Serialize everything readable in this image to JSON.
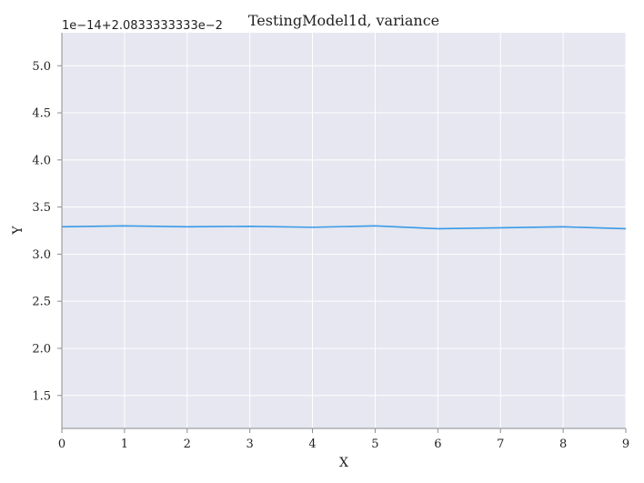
{
  "chart_data": {
    "type": "line",
    "title": "TestingModel1d, variance",
    "xlabel": "X",
    "ylabel": "Y",
    "offset_text": "1e−14+2.0833333333e−2",
    "x": [
      0,
      1,
      2,
      3,
      4,
      5,
      6,
      7,
      8,
      9
    ],
    "series": [
      {
        "values": [
          3.29,
          3.3,
          3.29,
          3.295,
          3.285,
          3.3,
          3.27,
          3.28,
          3.29,
          3.27
        ]
      }
    ],
    "xlim": [
      0,
      9
    ],
    "ylim": [
      1.15,
      5.35
    ],
    "xticks": [
      0,
      1,
      2,
      3,
      4,
      5,
      6,
      7,
      8,
      9
    ],
    "yticks": [
      1.5,
      2.0,
      2.5,
      3.0,
      3.5,
      4.0,
      4.5,
      5.0
    ],
    "grid": true,
    "colors": {
      "plot_background": "#e6e7f0",
      "line": "#3a9ae8"
    }
  }
}
